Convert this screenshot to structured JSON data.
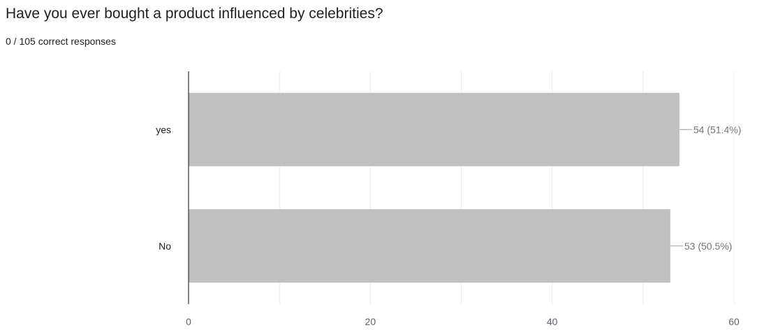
{
  "question": {
    "title": "Have you ever bought a product influenced by celebrities?",
    "summary": "0 / 105 correct responses"
  },
  "colors": {
    "bar": "#c0c0c0",
    "grid": "#ececec",
    "axis": "#333333",
    "leader": "#9e9e9e"
  },
  "chart_data": {
    "type": "bar",
    "orientation": "horizontal",
    "categories": [
      "yes",
      "No"
    ],
    "values": [
      54,
      53
    ],
    "data_labels": [
      "54 (51.4%)",
      "53 (50.5%)"
    ],
    "xlim": [
      0,
      60
    ],
    "xticks": [
      0,
      20,
      40,
      60
    ],
    "xtick_labels": [
      "0",
      "20",
      "40",
      "60"
    ],
    "grid": true,
    "legend": "none"
  }
}
